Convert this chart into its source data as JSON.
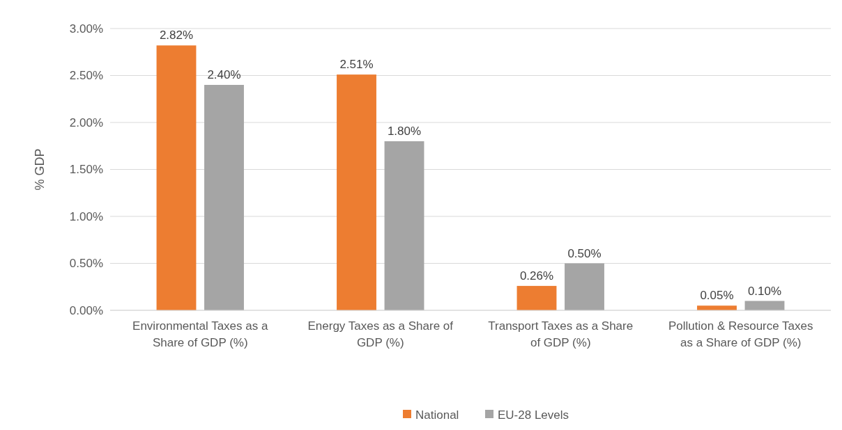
{
  "chart_data": {
    "type": "bar",
    "ylabel": "% GDP",
    "categories": [
      "Environmental Taxes as a Share of GDP (%)",
      "Energy Taxes as a Share of GDP (%)",
      "Transport Taxes as a Share of GDP (%)",
      "Pollution & Resource Taxes as a Share of GDP (%)"
    ],
    "series": [
      {
        "name": "National",
        "color": "#ed7d31",
        "values": [
          2.82,
          2.51,
          0.26,
          0.05
        ],
        "value_labels": [
          "2.82%",
          "2.51%",
          "0.26%",
          "0.05%"
        ]
      },
      {
        "name": "EU-28 Levels",
        "color": "#a5a5a5",
        "values": [
          2.4,
          1.8,
          0.5,
          0.1
        ],
        "value_labels": [
          "2.40%",
          "1.80%",
          "0.50%",
          "0.10%"
        ]
      }
    ],
    "ylim": [
      0,
      3
    ],
    "yticks": [
      {
        "value": 0,
        "label": "0.00%"
      },
      {
        "value": 0.5,
        "label": "0.50%"
      },
      {
        "value": 1,
        "label": "1.00%"
      },
      {
        "value": 1.5,
        "label": "1.50%"
      },
      {
        "value": 2,
        "label": "2.00%"
      },
      {
        "value": 2.5,
        "label": "2.50%"
      },
      {
        "value": 3,
        "label": "3.00%"
      }
    ],
    "grid": "y",
    "legend": "bottom"
  }
}
